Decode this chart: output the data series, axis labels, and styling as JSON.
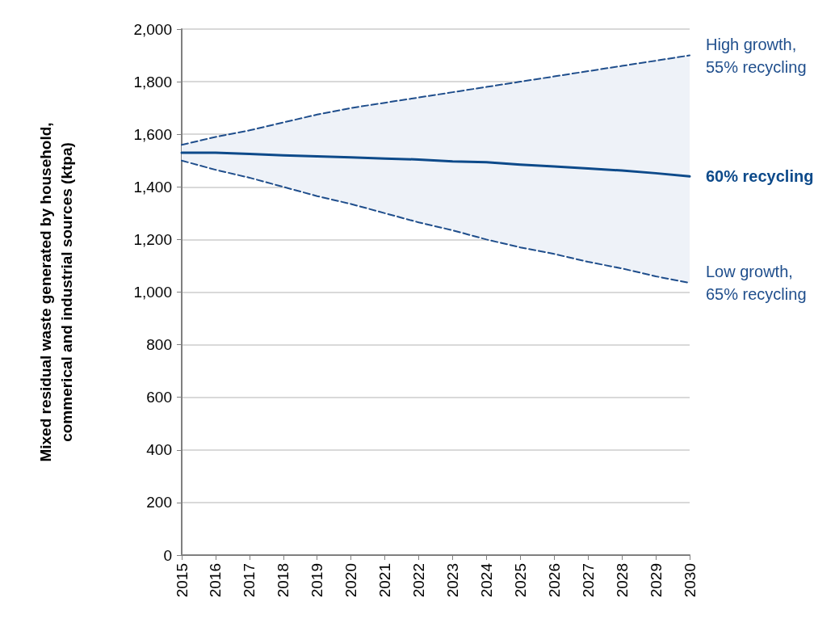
{
  "chart_data": {
    "type": "line",
    "ylabel": "Mixed residual waste generated by household,\ncommerical and industrial sources (ktpa)",
    "categories": [
      "2015",
      "2016",
      "2017",
      "2018",
      "2019",
      "2020",
      "2021",
      "2022",
      "2023",
      "2024",
      "2025",
      "2026",
      "2027",
      "2028",
      "2029",
      "2030"
    ],
    "series": [
      {
        "name": "High growth,\n55% recycling",
        "color": "#1f4e8c",
        "line_style": "dashed",
        "values": [
          1560,
          1590,
          1615,
          1645,
          1675,
          1700,
          1720,
          1740,
          1760,
          1780,
          1800,
          1820,
          1840,
          1860,
          1880,
          1900
        ]
      },
      {
        "name": "60% recycling",
        "color": "#0d4a8a",
        "line_style": "solid",
        "values": [
          1530,
          1530,
          1525,
          1520,
          1516,
          1512,
          1508,
          1504,
          1497,
          1494,
          1485,
          1478,
          1470,
          1462,
          1452,
          1440
        ],
        "lower": [
          1500,
          1465,
          1435,
          1400,
          1365,
          1335,
          1300,
          1265,
          1235,
          1200,
          1170,
          1145,
          1115,
          1090,
          1060,
          1035
        ],
        "upper": [
          1560,
          1590,
          1615,
          1645,
          1675,
          1700,
          1720,
          1740,
          1760,
          1780,
          1800,
          1820,
          1840,
          1860,
          1880,
          1900
        ]
      },
      {
        "name": "Low growth,\n65% recycling",
        "color": "#1f4e8c",
        "line_style": "dashed",
        "values": [
          1500,
          1465,
          1435,
          1400,
          1365,
          1335,
          1300,
          1265,
          1235,
          1200,
          1170,
          1145,
          1115,
          1090,
          1060,
          1035
        ]
      }
    ],
    "ylim": [
      0,
      2000
    ],
    "yticks": [
      0,
      200,
      400,
      600,
      800,
      {
        "value": 1000,
        "label": "1,000"
      },
      {
        "value": 1200,
        "label": "1,200"
      },
      {
        "value": 1400,
        "label": "1,400"
      },
      {
        "value": 1600,
        "label": "1,600"
      },
      {
        "value": 1800,
        "label": "1,800"
      },
      {
        "value": 2000,
        "label": "2,000"
      }
    ],
    "grid": "y",
    "marker": "none",
    "legend": false
  }
}
